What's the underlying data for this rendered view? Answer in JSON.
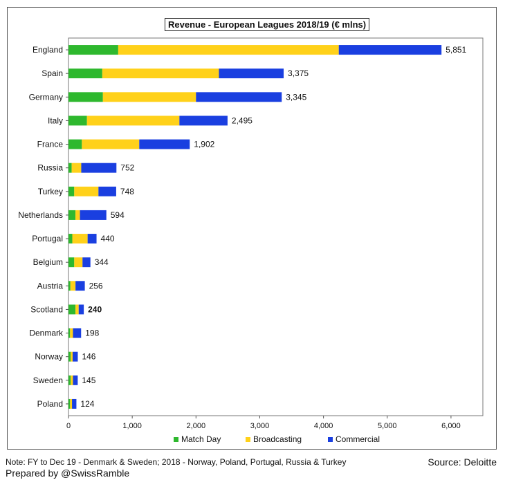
{
  "chart_data": {
    "type": "bar",
    "orientation": "horizontal",
    "stacked": true,
    "title": "Revenue - European Leagues 2018/19 (€ mlns)",
    "categories": [
      "England",
      "Spain",
      "Germany",
      "Italy",
      "France",
      "Russia",
      "Turkey",
      "Netherlands",
      "Portugal",
      "Belgium",
      "Austria",
      "Scotland",
      "Denmark",
      "Norway",
      "Sweden",
      "Poland"
    ],
    "series": [
      {
        "name": "Match Day",
        "color": "#2eb82e",
        "values": [
          780,
          530,
          540,
          290,
          210,
          50,
          90,
          110,
          60,
          90,
          30,
          110,
          25,
          35,
          35,
          25
        ]
      },
      {
        "name": "Broadcasting",
        "color": "#ffd11a",
        "values": [
          3460,
          1830,
          1460,
          1450,
          900,
          150,
          380,
          70,
          240,
          130,
          80,
          50,
          45,
          30,
          35,
          30
        ]
      },
      {
        "name": "Commercial",
        "color": "#1a3fe0",
        "values": [
          1611,
          1015,
          1345,
          755,
          792,
          552,
          278,
          414,
          140,
          124,
          146,
          80,
          128,
          81,
          75,
          69
        ]
      }
    ],
    "totals": [
      "5,851",
      "3,375",
      "3,345",
      "2,495",
      "1,902",
      "752",
      "748",
      "594",
      "440",
      "344",
      "256",
      "240",
      "198",
      "146",
      "145",
      "124"
    ],
    "highlight": {
      "category": "Scotland",
      "color": "#c01010"
    },
    "xlim": [
      0,
      6500
    ],
    "xticks": [
      0,
      1000,
      2000,
      3000,
      4000,
      5000,
      6000
    ],
    "xtick_labels": [
      "0",
      "1,000",
      "2,000",
      "3,000",
      "4,000",
      "5,000",
      "6,000"
    ],
    "grid": false,
    "legend_position": "bottom"
  },
  "footer": {
    "note": "Note: FY to Dec 19 - Denmark & Sweden; 2018 - Norway, Poland, Portugal, Russia & Turkey",
    "credit": "Prepared by @SwissRamble",
    "source": "Source: Deloitte"
  }
}
